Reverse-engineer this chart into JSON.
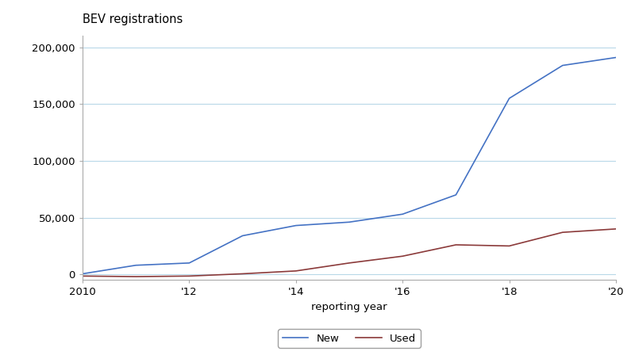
{
  "years": [
    2010,
    2011,
    2012,
    2013,
    2014,
    2015,
    2016,
    2017,
    2018,
    2019,
    2020
  ],
  "new_bev": [
    500,
    8000,
    10000,
    34000,
    43000,
    46000,
    53000,
    70000,
    155000,
    184000,
    191000
  ],
  "used_bev": [
    -1500,
    -2000,
    -1500,
    500,
    3000,
    10000,
    16000,
    26000,
    25000,
    37000,
    40000
  ],
  "new_color": "#4472C4",
  "used_color": "#8B3A3A",
  "title": "BEV registrations",
  "xlabel": "reporting year",
  "ylabel": "",
  "ylim": [
    -5000,
    210000
  ],
  "yticks": [
    0,
    50000,
    100000,
    150000,
    200000
  ],
  "xticks": [
    2010,
    2012,
    2014,
    2016,
    2018,
    2020
  ],
  "xticklabels": [
    "2010",
    "'12",
    "'14",
    "'16",
    "'18",
    "'20"
  ],
  "legend_new": "New",
  "legend_used": "Used",
  "grid_color": "#B8D8E8",
  "background_color": "#FFFFFF",
  "spine_color": "#AAAAAA"
}
